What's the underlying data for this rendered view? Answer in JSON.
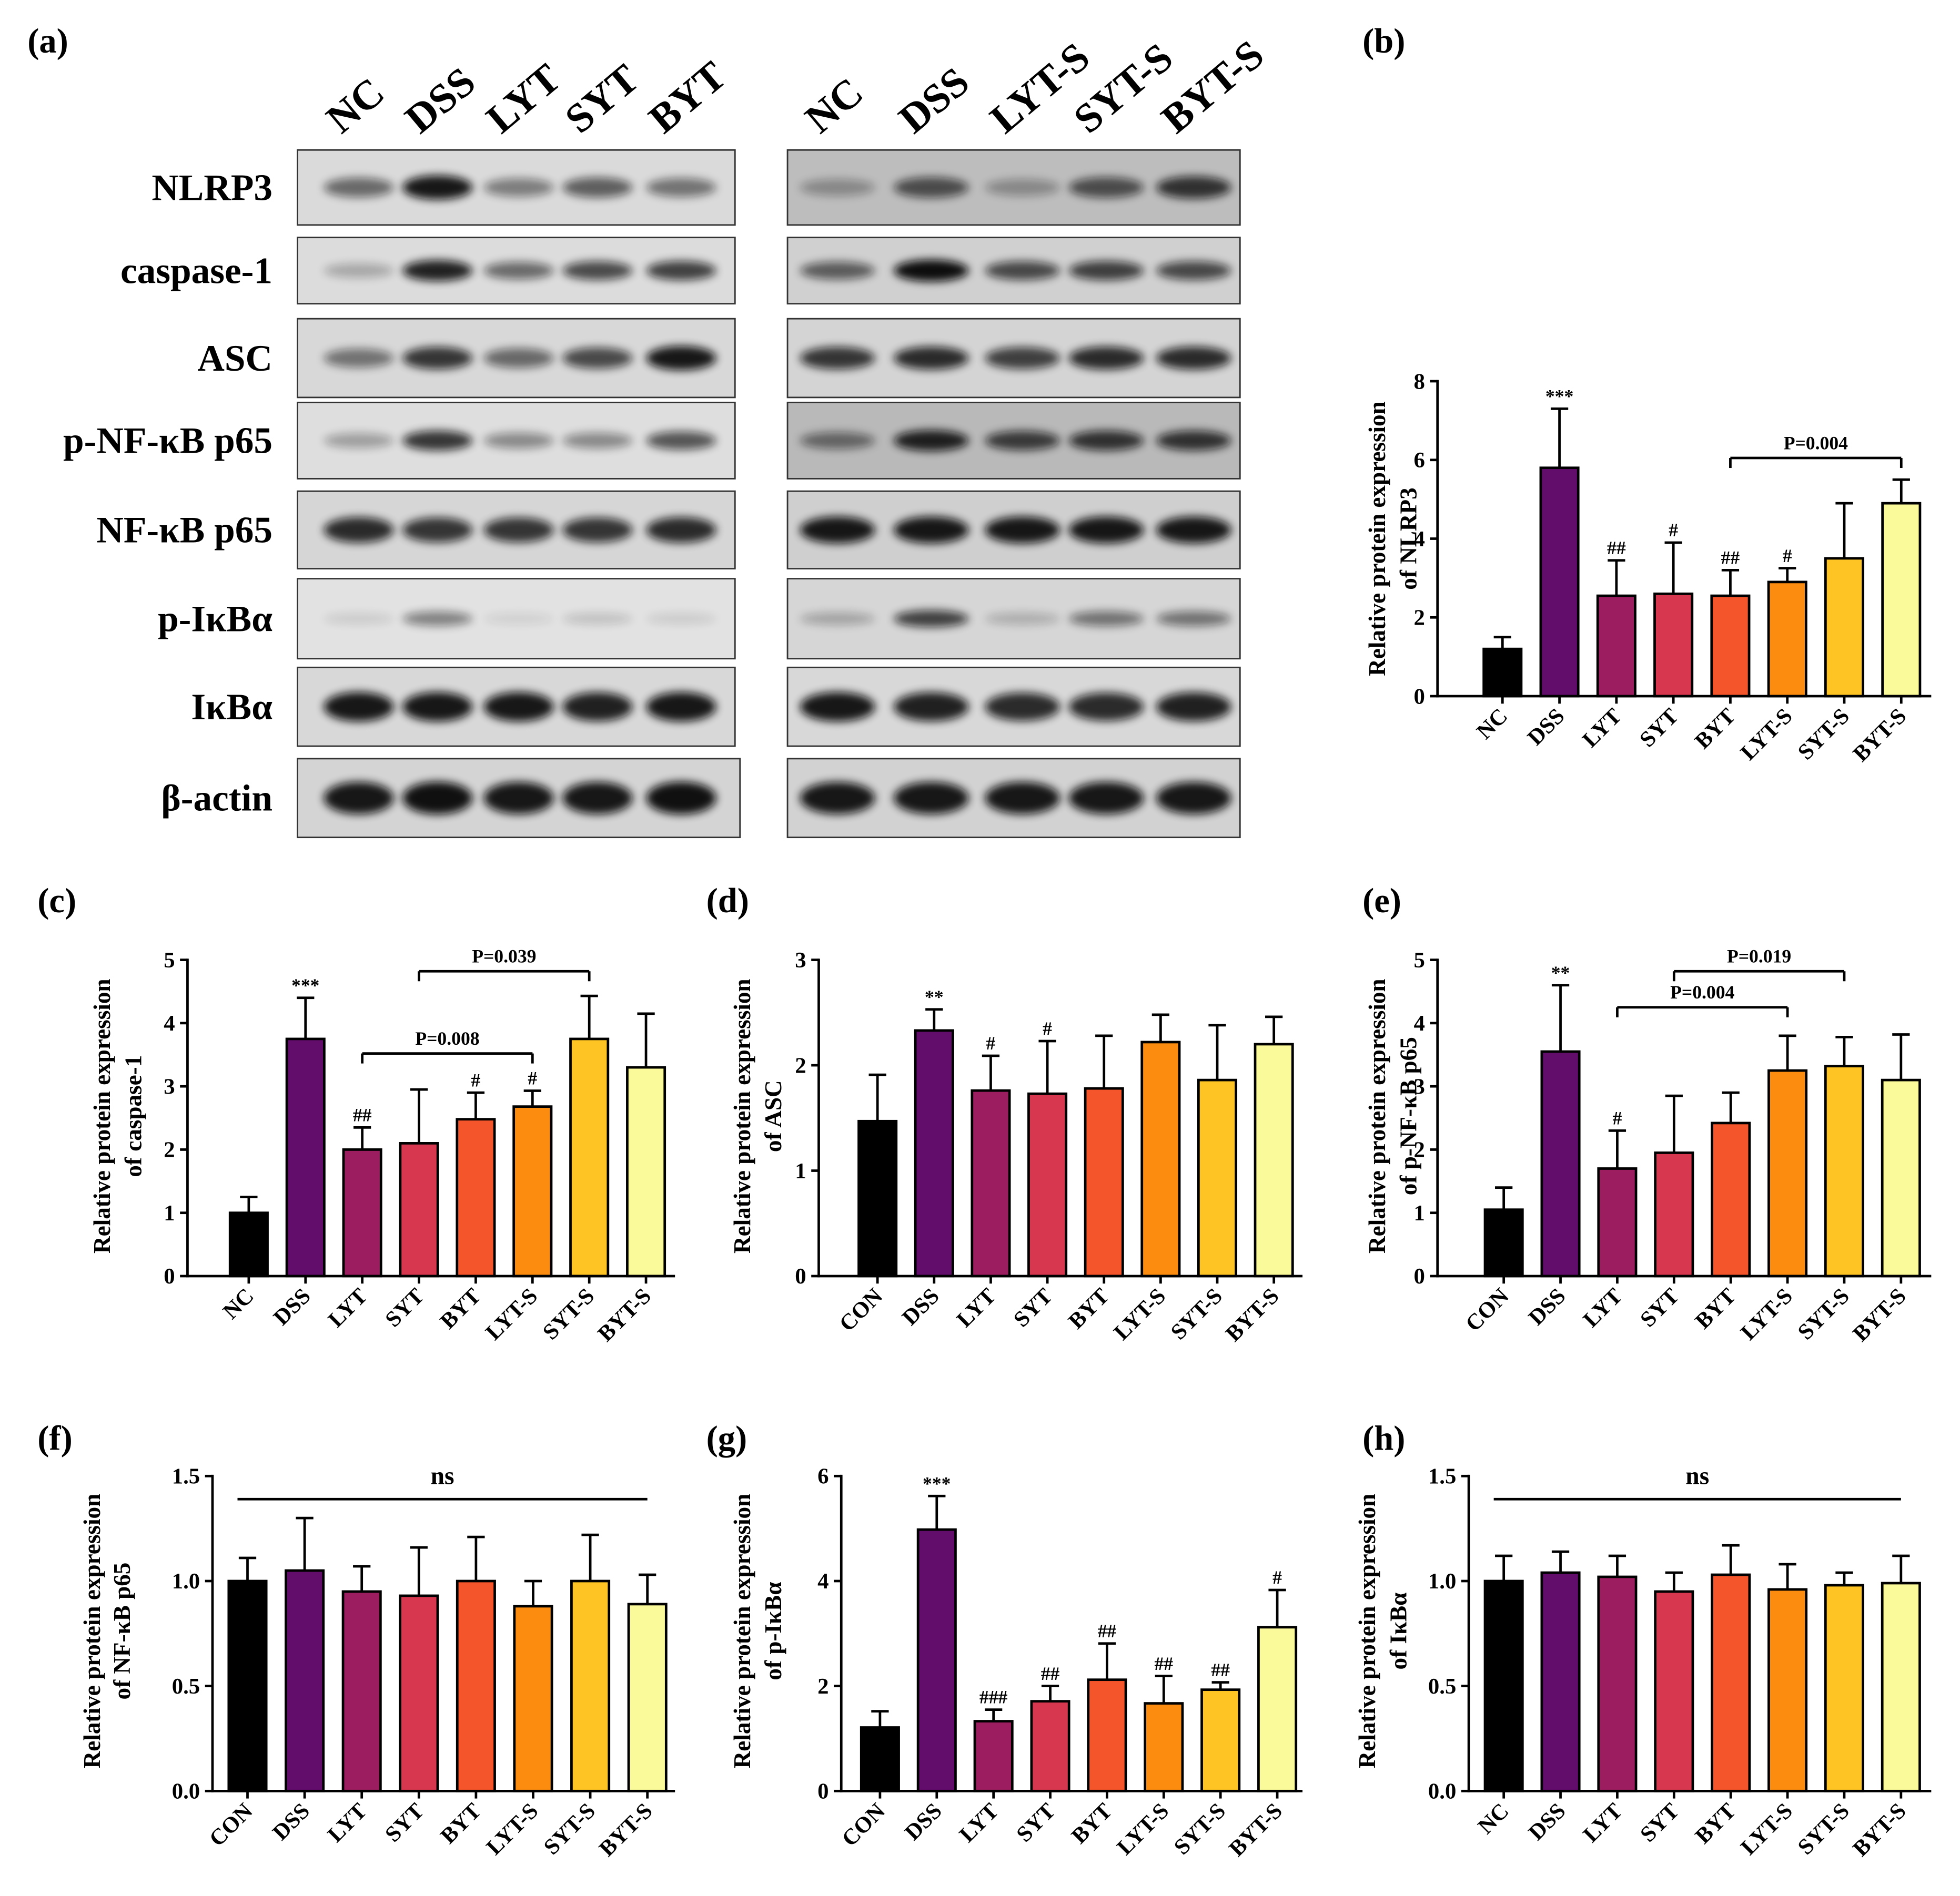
{
  "figure": {
    "panel_a_label": "(a)"
  },
  "palette": [
    "#000000",
    "#620c6b",
    "#9c1e60",
    "#d8384f",
    "#f4552a",
    "#fb8c10",
    "#fdc423",
    "#fbfa9a"
  ],
  "blot": {
    "lanes_left": [
      "NC",
      "DSS",
      "LYT",
      "SYT",
      "BYT"
    ],
    "lanes_right": [
      "NC",
      "DSS",
      "LYT-S",
      "SYT-S",
      "BYT-S"
    ],
    "proteins": [
      "NLRP3",
      "caspase-1",
      "ASC",
      "p-NF-κB p65",
      "NF-κB p65",
      "p-IκBα",
      "IκBα",
      "β-actin"
    ],
    "intensity_left": [
      [
        0.55,
        0.95,
        0.45,
        0.6,
        0.5
      ],
      [
        0.25,
        0.9,
        0.55,
        0.7,
        0.75
      ],
      [
        0.5,
        0.8,
        0.55,
        0.7,
        0.95
      ],
      [
        0.3,
        0.8,
        0.4,
        0.4,
        0.65
      ],
      [
        0.85,
        0.8,
        0.8,
        0.8,
        0.85
      ],
      [
        0.1,
        0.45,
        0.08,
        0.15,
        0.1
      ],
      [
        0.95,
        0.95,
        0.95,
        0.9,
        0.95
      ],
      [
        0.95,
        0.98,
        0.95,
        0.95,
        0.98
      ]
    ],
    "intensity_right": [
      [
        0.3,
        0.65,
        0.3,
        0.65,
        0.8
      ],
      [
        0.6,
        1.0,
        0.7,
        0.75,
        0.7
      ],
      [
        0.8,
        0.85,
        0.75,
        0.85,
        0.85
      ],
      [
        0.5,
        0.9,
        0.75,
        0.8,
        0.8
      ],
      [
        0.95,
        0.95,
        0.95,
        0.95,
        0.95
      ],
      [
        0.25,
        0.75,
        0.2,
        0.5,
        0.5
      ],
      [
        0.95,
        0.9,
        0.85,
        0.85,
        0.9
      ],
      [
        0.95,
        0.95,
        0.95,
        0.95,
        0.95
      ]
    ]
  },
  "chart_data": [
    {
      "panel": "(b)",
      "type": "bar",
      "categories": [
        "NC",
        "DSS",
        "LYT",
        "SYT",
        "BYT",
        "LYT-S",
        "SYT-S",
        "BYT-S"
      ],
      "values": [
        1.2,
        5.8,
        2.55,
        2.6,
        2.55,
        2.9,
        3.5,
        4.9
      ],
      "error_upper": [
        1.5,
        7.3,
        3.45,
        3.9,
        3.2,
        3.25,
        4.9,
        5.5
      ],
      "ylabel": [
        "Relative protein expression",
        "of NLRP3"
      ],
      "xlabel": "",
      "ylim": [
        0,
        8
      ],
      "yticks": [
        "0",
        "2",
        "4",
        "6",
        "8"
      ],
      "significance": [
        "",
        "***",
        "##",
        "#",
        "##",
        "#",
        "",
        ""
      ],
      "brackets": [
        {
          "from": 4,
          "to": 7,
          "y": 6.05,
          "label": "P=0.004",
          "ticks": true
        }
      ]
    },
    {
      "panel": "(c)",
      "type": "bar",
      "categories": [
        "NC",
        "DSS",
        "LYT",
        "SYT",
        "BYT",
        "LYT-S",
        "SYT-S",
        "BYT-S"
      ],
      "values": [
        1.0,
        3.75,
        2.0,
        2.1,
        2.48,
        2.68,
        3.75,
        3.3
      ],
      "error_upper": [
        1.25,
        4.4,
        2.35,
        2.95,
        2.9,
        2.93,
        4.43,
        4.15
      ],
      "ylabel": [
        "Relative protein expression",
        "of caspase-1"
      ],
      "xlabel": "",
      "ylim": [
        0,
        5
      ],
      "yticks": [
        "0",
        "1",
        "2",
        "3",
        "4",
        "5"
      ],
      "significance": [
        "",
        "***",
        "##",
        "",
        "#",
        "#",
        "",
        ""
      ],
      "brackets": [
        {
          "from": 2,
          "to": 5,
          "y": 3.52,
          "label": "P=0.008",
          "ticks": true
        },
        {
          "from": 3,
          "to": 6,
          "y": 4.82,
          "label": "P=0.039",
          "ticks": true
        }
      ]
    },
    {
      "panel": "(d)",
      "type": "bar",
      "categories": [
        "CON",
        "DSS",
        "LYT",
        "SYT",
        "BYT",
        "LYT-S",
        "SYT-S",
        "BYT-S"
      ],
      "values": [
        1.47,
        2.33,
        1.76,
        1.73,
        1.78,
        2.22,
        1.86,
        2.2
      ],
      "error_upper": [
        1.91,
        2.53,
        2.09,
        2.23,
        2.28,
        2.48,
        2.38,
        2.46
      ],
      "ylabel": [
        "Relative protein expression",
        "of ASC"
      ],
      "xlabel": "",
      "ylim": [
        0,
        3
      ],
      "yticks": [
        "0",
        "1",
        "2",
        "3"
      ],
      "significance": [
        "",
        "**",
        "#",
        "#",
        "",
        "",
        "",
        ""
      ],
      "brackets": []
    },
    {
      "panel": "(e)",
      "type": "bar",
      "categories": [
        "CON",
        "DSS",
        "LYT",
        "SYT",
        "BYT",
        "LYT-S",
        "SYT-S",
        "BYT-S"
      ],
      "values": [
        1.05,
        3.55,
        1.7,
        1.95,
        2.42,
        3.25,
        3.32,
        3.1
      ],
      "error_upper": [
        1.4,
        4.6,
        2.3,
        2.85,
        2.9,
        3.8,
        3.78,
        3.82
      ],
      "ylabel": [
        "Relative protein expression",
        "of p-NF-κB p65"
      ],
      "xlabel": "",
      "ylim": [
        0,
        5
      ],
      "yticks": [
        "0",
        "1",
        "2",
        "3",
        "4",
        "5"
      ],
      "significance": [
        "",
        "**",
        "#",
        "",
        "",
        "",
        "",
        ""
      ],
      "brackets": [
        {
          "from": 2,
          "to": 5,
          "y": 4.25,
          "label": "P=0.004",
          "ticks": true
        },
        {
          "from": 3,
          "to": 6,
          "y": 4.82,
          "label": "P=0.019",
          "ticks": true
        }
      ]
    },
    {
      "panel": "(f)",
      "type": "bar",
      "categories": [
        "CON",
        "DSS",
        "LYT",
        "SYT",
        "BYT",
        "LYT-S",
        "SYT-S",
        "BYT-S"
      ],
      "values": [
        1.0,
        1.05,
        0.95,
        0.93,
        1.0,
        0.88,
        1.0,
        0.89
      ],
      "error_upper": [
        1.11,
        1.3,
        1.07,
        1.16,
        1.21,
        1.0,
        1.22,
        1.03
      ],
      "ylabel": [
        "Relative protein expression",
        "of NF-κB p65"
      ],
      "xlabel": "",
      "ylim": [
        0,
        1.5
      ],
      "yticks": [
        "0.0",
        "0.5",
        "1.0",
        "1.5"
      ],
      "significance": [
        "",
        "",
        "",
        "",
        "",
        "",
        "",
        ""
      ],
      "brackets": [
        {
          "from": 0,
          "to": 7,
          "y": 1.39,
          "label": "ns",
          "ticks": false
        }
      ]
    },
    {
      "panel": "(g)",
      "type": "bar",
      "categories": [
        "CON",
        "DSS",
        "LYT",
        "SYT",
        "BYT",
        "LYT-S",
        "SYT-S",
        "BYT-S"
      ],
      "values": [
        1.21,
        4.98,
        1.33,
        1.71,
        2.12,
        1.67,
        1.93,
        3.12
      ],
      "error_upper": [
        1.52,
        5.62,
        1.55,
        2.0,
        2.81,
        2.19,
        2.07,
        3.83
      ],
      "ylabel": [
        "Relative protein expression",
        "of p-IκBα"
      ],
      "xlabel": "",
      "ylim": [
        0,
        6
      ],
      "yticks": [
        "0",
        "2",
        "4",
        "6"
      ],
      "significance": [
        "",
        "***",
        "###",
        "##",
        "##",
        "##",
        "##",
        "#"
      ],
      "brackets": []
    },
    {
      "panel": "(h)",
      "type": "bar",
      "categories": [
        "NC",
        "DSS",
        "LYT",
        "SYT",
        "BYT",
        "LYT-S",
        "SYT-S",
        "BYT-S"
      ],
      "values": [
        1.0,
        1.04,
        1.02,
        0.95,
        1.03,
        0.96,
        0.98,
        0.99
      ],
      "error_upper": [
        1.12,
        1.14,
        1.12,
        1.04,
        1.17,
        1.08,
        1.04,
        1.12
      ],
      "ylabel": [
        "Relative protein expression",
        "of IκBα"
      ],
      "xlabel": "",
      "ylim": [
        0,
        1.5
      ],
      "yticks": [
        "0.0",
        "0.5",
        "1.0",
        "1.5"
      ],
      "significance": [
        "",
        "",
        "",
        "",
        "",
        "",
        "",
        ""
      ],
      "brackets": [
        {
          "from": 0,
          "to": 7,
          "y": 1.39,
          "label": "ns",
          "ticks": false
        }
      ]
    }
  ]
}
